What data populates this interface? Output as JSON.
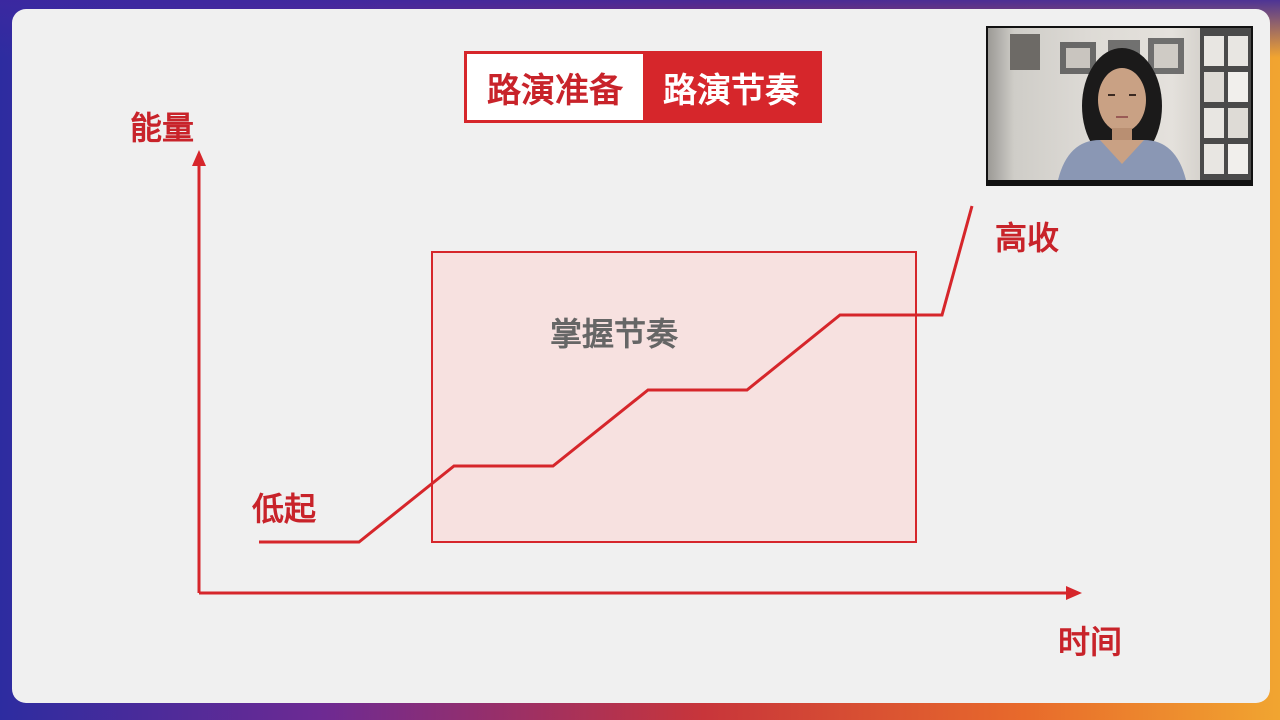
{
  "slide": {
    "title_left": "路演准备",
    "title_right": "路演节奏",
    "y_axis_label": "能量",
    "x_axis_label": "时间",
    "start_label": "低起",
    "end_label": "高收",
    "box_label": "掌握节奏"
  },
  "colors": {
    "accent": "#d6262b",
    "box_fill": "#f6dedd",
    "box_text": "#666666",
    "slide_bg": "#f0f0f0"
  },
  "webcam": {
    "icon": "presenter-video-feed"
  }
}
